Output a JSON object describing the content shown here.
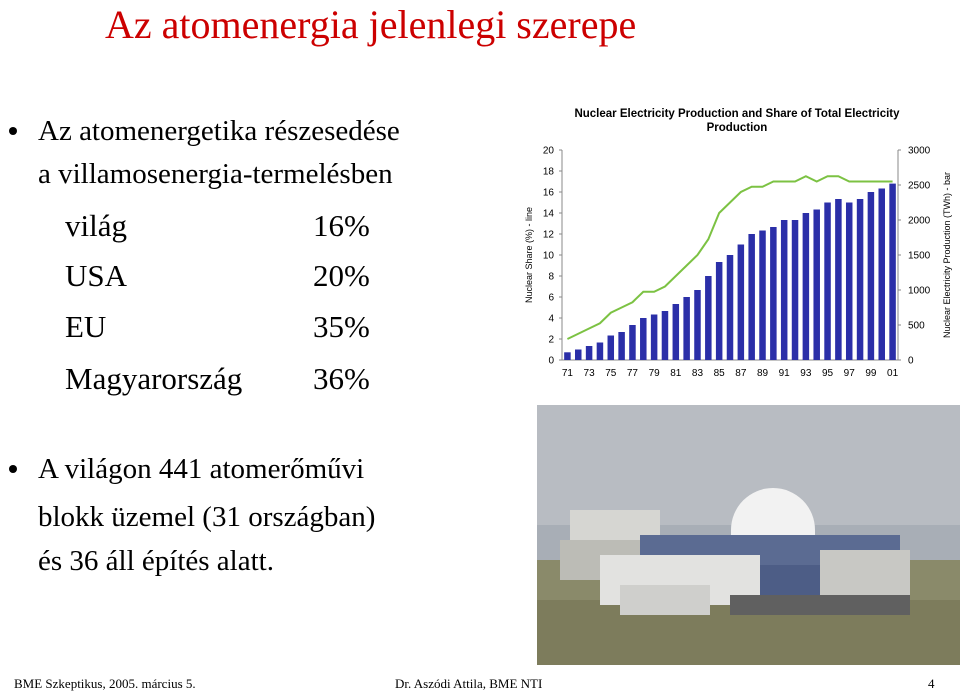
{
  "title": "Az atomenergia jelenlegi szerepe",
  "bullets": [
    {
      "lines": [
        "Az atomenergetika részesedése",
        "a villamosenergia-termelésben"
      ]
    },
    {
      "lines": [
        "A világon 441 atomerőművi",
        "blokk üzemel (31 országban)",
        "és 36 áll építés alatt."
      ]
    }
  ],
  "table": {
    "rows": [
      [
        "világ",
        "16%"
      ],
      [
        "USA",
        "20%"
      ],
      [
        "EU",
        "35%"
      ],
      [
        "Magyarország",
        "36%"
      ]
    ]
  },
  "chart": {
    "type": "bar-line",
    "title": [
      "Nuclear Electricity Production and Share of Total Electricity",
      "Production"
    ],
    "y_label": "Nuclear Share (%) - line",
    "y2_label": "Nuclear Electricity Production (TWh) - bar",
    "categories": [
      "71",
      null,
      "73",
      null,
      "75",
      null,
      "77",
      null,
      "79",
      null,
      "81",
      null,
      "83",
      null,
      "85",
      null,
      "87",
      null,
      "89",
      null,
      "91",
      null,
      "93",
      null,
      "95",
      null,
      "97",
      null,
      "99",
      null,
      "01"
    ],
    "ylim": [
      0,
      20
    ],
    "yticks": [
      0,
      2,
      4,
      6,
      8,
      10,
      12,
      14,
      16,
      18,
      20
    ],
    "y2lim": [
      0,
      3000
    ],
    "y2ticks": [
      0,
      500,
      1000,
      1500,
      2000,
      2500,
      3000
    ],
    "series": [
      {
        "name": "Nuclear Electricity Production (TWh)",
        "kind": "bar",
        "axis": "y2",
        "color": "#2b2fa8",
        "values": [
          110,
          150,
          200,
          250,
          350,
          400,
          500,
          600,
          650,
          700,
          800,
          900,
          1000,
          1200,
          1400,
          1500,
          1650,
          1800,
          1850,
          1900,
          2000,
          2000,
          2100,
          2150,
          2250,
          2300,
          2250,
          2300,
          2400,
          2450,
          2520
        ]
      },
      {
        "name": "Nuclear Share (%)",
        "kind": "line",
        "color": "#7cc243",
        "values": [
          2,
          2.5,
          3,
          3.5,
          4.5,
          5,
          5.5,
          6.5,
          6.5,
          7,
          8,
          9,
          10,
          11.5,
          14,
          15,
          16,
          16.5,
          16.5,
          17,
          17,
          17,
          17.5,
          17,
          17.5,
          17.5,
          17,
          17,
          17,
          17,
          17
        ]
      }
    ]
  },
  "footer": {
    "left": "BME Szkeptikus, 2005. március 5.",
    "center": "Dr. Aszódi Attila, BME NTI",
    "page": "4"
  }
}
